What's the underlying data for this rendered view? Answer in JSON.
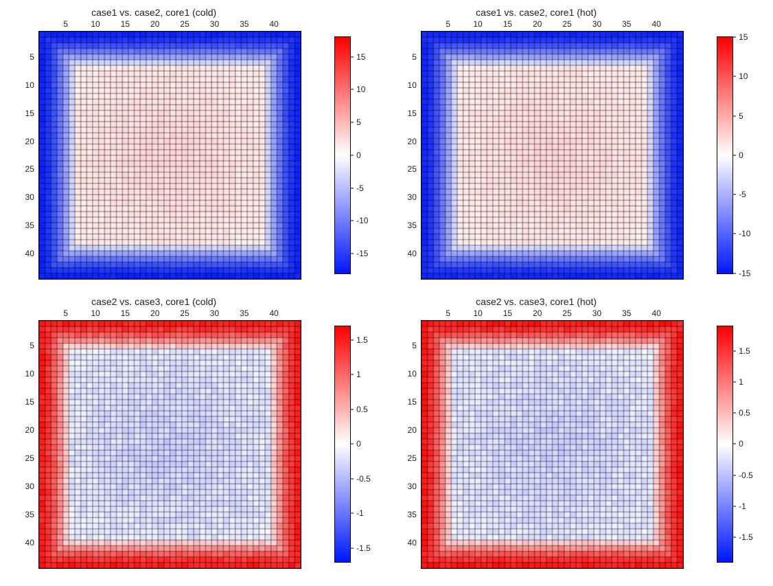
{
  "layout": {
    "rows": 2,
    "cols": 2,
    "background_color": "#ffffff",
    "font_family": "Arial",
    "title_fontsize": 14,
    "tick_fontsize": 12,
    "tick_color": "#222222",
    "grid_line_color": "#000000",
    "grid_line_width": 0.5
  },
  "colormap": {
    "name": "blue-white-red",
    "stops": [
      {
        "t": 0.0,
        "color": "#0018ff"
      },
      {
        "t": 0.5,
        "color": "#ffffff"
      },
      {
        "t": 1.0,
        "color": "#ff0000"
      }
    ]
  },
  "panels": [
    {
      "id": "p1",
      "title": "case1 vs. case2, core1 (cold)",
      "nx": 44,
      "ny": 44,
      "x_ticks": [
        5,
        10,
        15,
        20,
        25,
        30,
        35,
        40
      ],
      "y_ticks": [
        5,
        10,
        15,
        20,
        25,
        30,
        35,
        40
      ],
      "vmin": -18,
      "vmax": 18,
      "colorbar_ticks": [
        15,
        10,
        5,
        0,
        -5,
        -10,
        -15
      ],
      "pattern": "center-positive-edge-negative",
      "center_value": 3.0,
      "edge_value": -17.0,
      "edge_width": 6,
      "noise": 0.15
    },
    {
      "id": "p2",
      "title": "case1 vs. case2, core1 (hot)",
      "nx": 44,
      "ny": 44,
      "x_ticks": [
        5,
        10,
        15,
        20,
        25,
        30,
        35,
        40
      ],
      "y_ticks": [
        5,
        10,
        15,
        20,
        25,
        30,
        35,
        40
      ],
      "vmin": -15,
      "vmax": 15,
      "colorbar_ticks": [
        15,
        10,
        5,
        0,
        -5,
        -10,
        -15
      ],
      "pattern": "center-positive-edge-negative",
      "center_value": 2.5,
      "edge_value": -14.0,
      "edge_width": 6,
      "noise": 0.15
    },
    {
      "id": "p3",
      "title": "case2 vs. case3, core1 (cold)",
      "nx": 44,
      "ny": 44,
      "x_ticks": [
        5,
        10,
        15,
        20,
        25,
        30,
        35,
        40
      ],
      "y_ticks": [
        5,
        10,
        15,
        20,
        25,
        30,
        35,
        40
      ],
      "vmin": -1.7,
      "vmax": 1.7,
      "colorbar_ticks": [
        1.5,
        1,
        0.5,
        0,
        -0.5,
        -1,
        -1.5
      ],
      "pattern": "center-negative-edge-positive",
      "center_value": -0.35,
      "edge_value": 1.5,
      "edge_width": 5,
      "noise": 0.35
    },
    {
      "id": "p4",
      "title": "case2 vs. case3, core1 (hot)",
      "nx": 44,
      "ny": 44,
      "x_ticks": [
        5,
        10,
        15,
        20,
        25,
        30,
        35,
        40
      ],
      "y_ticks": [
        5,
        10,
        15,
        20,
        25,
        30,
        35,
        40
      ],
      "vmin": -1.9,
      "vmax": 1.9,
      "colorbar_ticks": [
        1.5,
        1,
        0.5,
        0,
        -0.5,
        -1,
        -1.5
      ],
      "pattern": "center-negative-edge-positive",
      "center_value": -0.4,
      "edge_value": 1.7,
      "edge_width": 5,
      "noise": 0.35
    }
  ]
}
